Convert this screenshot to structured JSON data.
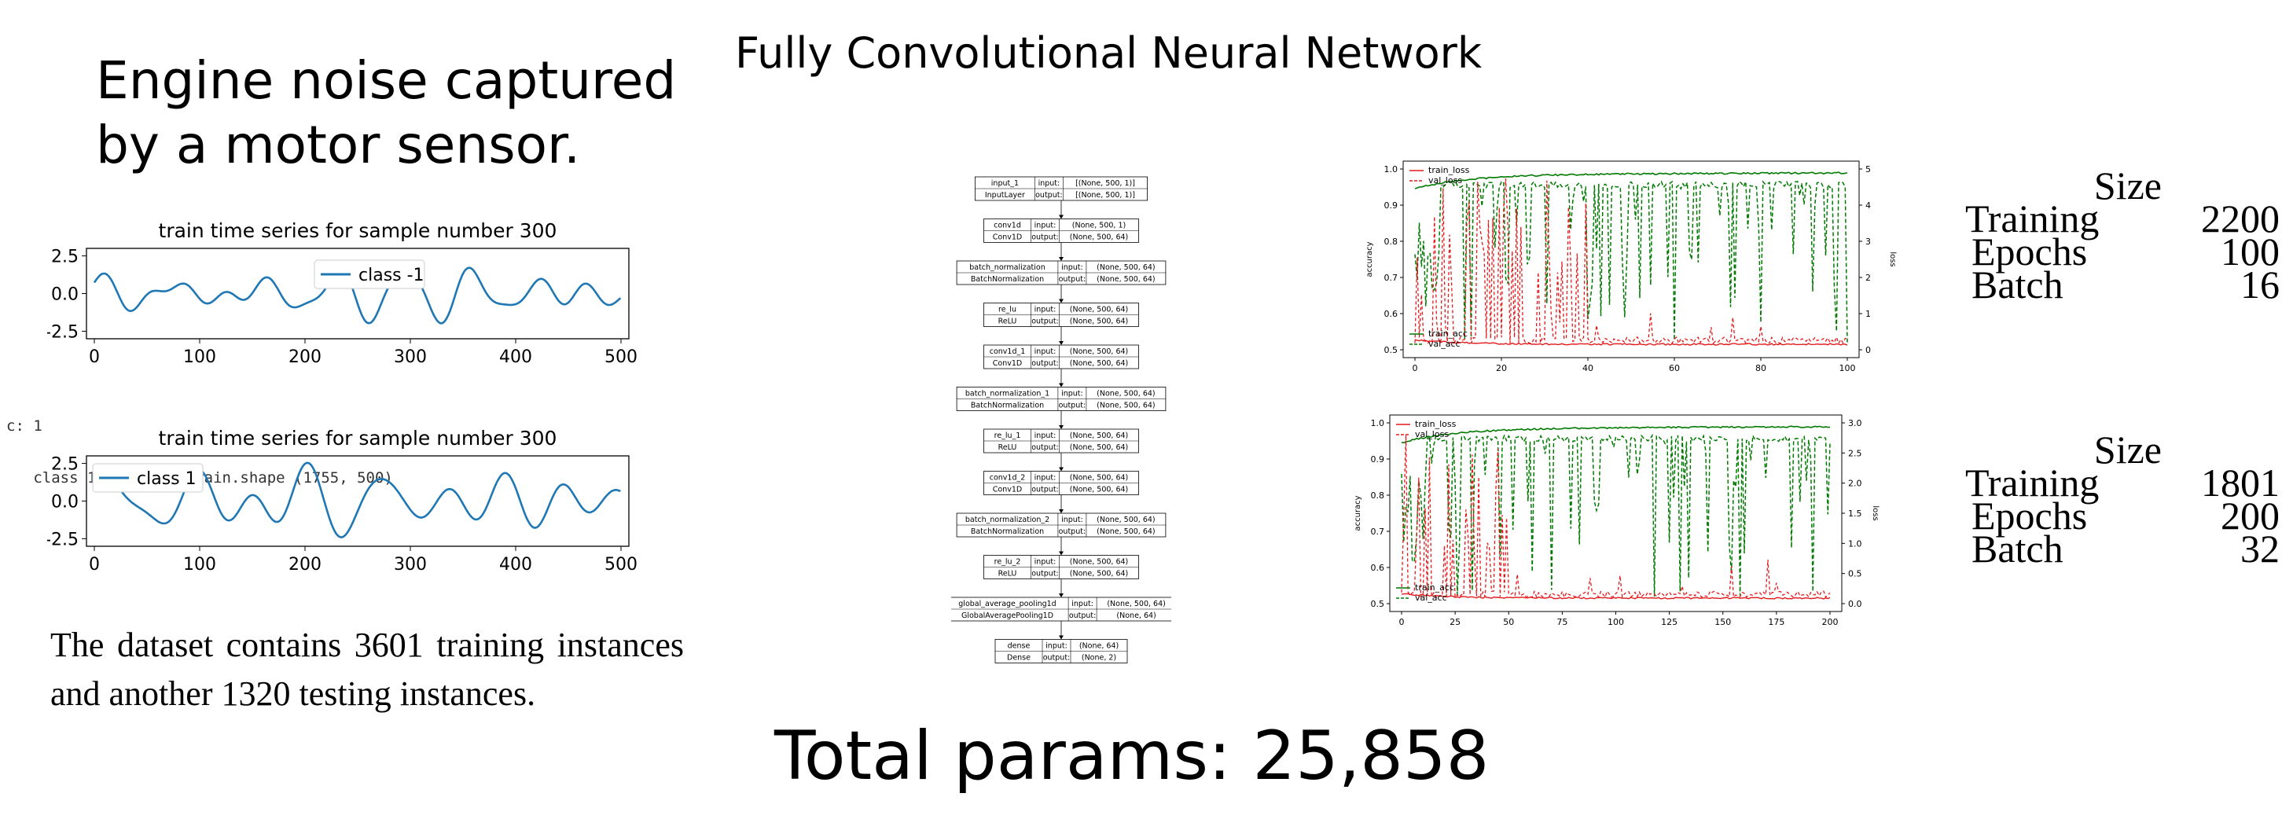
{
  "slide_title": "Fully Convolutional Neural Network",
  "heading": [
    "Engine noise captured",
    "by a motor sensor."
  ],
  "description": "The dataset contains 3601 training instances and another 1320 testing instances.",
  "total_params": "Total params: 25,858",
  "console": {
    "line1": "c: 1",
    "line2": "   class 1 with c_x_train.shape (1755, 500)"
  },
  "chart_data": [
    {
      "type": "line",
      "title": "train time series for sample number 300",
      "x_ticks": [
        "0",
        "100",
        "200",
        "300",
        "400",
        "500"
      ],
      "y_ticks": [
        "2.5",
        "0.0",
        "-2.5"
      ],
      "xlim": [
        0,
        500
      ],
      "ylim": [
        -3,
        3
      ],
      "legend": "class -1",
      "color": "#1f77b4"
    },
    {
      "type": "line",
      "title": "train time series for sample number 300",
      "x_ticks": [
        "0",
        "100",
        "200",
        "300",
        "400",
        "500"
      ],
      "y_ticks": [
        "2.5",
        "0.0",
        "-2.5"
      ],
      "xlim": [
        0,
        500
      ],
      "ylim": [
        -3,
        3
      ],
      "legend": "class 1",
      "color": "#1f77b4"
    },
    {
      "type": "line",
      "y_ticks": [
        "1.0",
        "0.9",
        "0.8",
        "0.7",
        "0.6",
        "0.5"
      ],
      "y2_ticks": [
        "5",
        "4",
        "3",
        "2",
        "1",
        "0"
      ],
      "x_ticks": [
        "0",
        "20",
        "40",
        "60",
        "80",
        "100"
      ],
      "ylabel": "accuracy",
      "y2label": "loss",
      "legend_top": [
        "train_loss",
        "val_loss"
      ],
      "legend_bottom": [
        "train_acc",
        "val_acc"
      ],
      "colors": {
        "acc": "#007a00",
        "loss": "#e31a1c"
      }
    },
    {
      "type": "line",
      "y_ticks": [
        "1.0",
        "0.9",
        "0.8",
        "0.7",
        "0.6",
        "0.5"
      ],
      "y2_ticks": [
        "3.0",
        "2.5",
        "2.0",
        "1.5",
        "1.0",
        "0.5",
        "0.0"
      ],
      "x_ticks": [
        "0",
        "25",
        "50",
        "75",
        "100",
        "125",
        "150",
        "175",
        "200"
      ],
      "ylabel": "accuracy",
      "y2label": "loss",
      "legend_top": [
        "train_loss",
        "val_loss"
      ],
      "legend_bottom": [
        "train_acc",
        "val_acc"
      ],
      "colors": {
        "acc": "#007a00",
        "loss": "#e31a1c"
      }
    }
  ],
  "stats": [
    {
      "header": "Size",
      "rows": [
        [
          "Training",
          "2200"
        ],
        [
          "Epochs",
          "100"
        ],
        [
          "Batch",
          "16"
        ]
      ]
    },
    {
      "header": "Size",
      "rows": [
        [
          "Training",
          "1801"
        ],
        [
          "Epochs",
          "200"
        ],
        [
          "Batch",
          "32"
        ]
      ]
    }
  ],
  "model_layers": [
    {
      "name": "input_1",
      "type": "InputLayer",
      "input": "[(None, 500, 1)]",
      "output": "[(None, 500, 1)]"
    },
    {
      "name": "conv1d",
      "type": "Conv1D",
      "input": "(None, 500, 1)",
      "output": "(None, 500, 64)"
    },
    {
      "name": "batch_normalization",
      "type": "BatchNormalization",
      "input": "(None, 500, 64)",
      "output": "(None, 500, 64)"
    },
    {
      "name": "re_lu",
      "type": "ReLU",
      "input": "(None, 500, 64)",
      "output": "(None, 500, 64)"
    },
    {
      "name": "conv1d_1",
      "type": "Conv1D",
      "input": "(None, 500, 64)",
      "output": "(None, 500, 64)"
    },
    {
      "name": "batch_normalization_1",
      "type": "BatchNormalization",
      "input": "(None, 500, 64)",
      "output": "(None, 500, 64)"
    },
    {
      "name": "re_lu_1",
      "type": "ReLU",
      "input": "(None, 500, 64)",
      "output": "(None, 500, 64)"
    },
    {
      "name": "conv1d_2",
      "type": "Conv1D",
      "input": "(None, 500, 64)",
      "output": "(None, 500, 64)"
    },
    {
      "name": "batch_normalization_2",
      "type": "BatchNormalization",
      "input": "(None, 500, 64)",
      "output": "(None, 500, 64)"
    },
    {
      "name": "re_lu_2",
      "type": "ReLU",
      "input": "(None, 500, 64)",
      "output": "(None, 500, 64)"
    },
    {
      "name": "global_average_pooling1d",
      "type": "GlobalAveragePooling1D",
      "input": "(None, 500, 64)",
      "output": "(None, 64)"
    },
    {
      "name": "dense",
      "type": "Dense",
      "input": "(None, 64)",
      "output": "(None, 2)"
    }
  ],
  "labels": {
    "input": "input:",
    "output": "output:"
  }
}
